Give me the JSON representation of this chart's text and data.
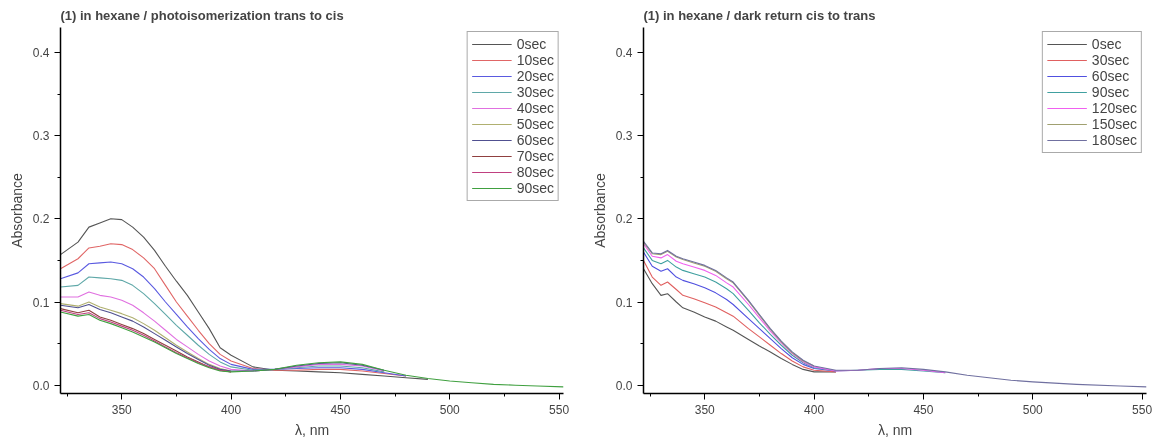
{
  "chart_data": [
    {
      "type": "line",
      "title": "(1) in hexane / photoisomerization trans to cis",
      "xlabel": "λ, nm",
      "ylabel": "Absorbance",
      "x": [
        322,
        330,
        335,
        340,
        345,
        350,
        355,
        360,
        365,
        370,
        375,
        380,
        385,
        390,
        395,
        400,
        410,
        420,
        430,
        440,
        450,
        460,
        470,
        480,
        490,
        500,
        510,
        520,
        530,
        540,
        552
      ],
      "xlim": [
        322,
        552
      ],
      "ylim": [
        -0.01,
        0.43
      ],
      "xticks": [
        {
          "value": 325,
          "label": null
        },
        350,
        {
          "value": 375,
          "label": null
        },
        400,
        {
          "value": 425,
          "label": null
        },
        450,
        {
          "value": 475,
          "label": null
        },
        500,
        {
          "value": 525,
          "label": null
        },
        550
      ],
      "yticks": [
        {
          "value": 0,
          "label": "0.0"
        },
        {
          "value": 0.05,
          "label": null
        },
        0.1,
        {
          "value": 0.15,
          "label": null
        },
        0.2,
        {
          "value": 0.25,
          "label": null
        },
        0.3,
        {
          "value": 0.35,
          "label": null
        },
        0.4
      ],
      "legend": "top right",
      "grid": false,
      "line_style": "solid",
      "marker": "none",
      "series": [
        {
          "name": "0sec",
          "color": "#555555",
          "values": [
            0.157,
            0.172,
            0.19,
            0.195,
            0.2,
            0.199,
            0.19,
            0.178,
            0.162,
            0.143,
            0.125,
            0.108,
            0.088,
            0.068,
            0.045,
            0.036,
            0.022,
            0.018,
            0.017,
            0.016,
            0.015,
            0.013,
            0.011,
            0.009,
            0.007,
            null,
            null,
            null,
            null,
            null,
            null
          ]
        },
        {
          "name": "10sec",
          "color": "#e06666",
          "values": [
            0.14,
            0.152,
            0.165,
            0.167,
            0.17,
            0.169,
            0.163,
            0.153,
            0.14,
            0.12,
            0.1,
            0.083,
            0.066,
            0.05,
            0.037,
            0.029,
            0.02,
            0.018,
            0.018,
            0.019,
            0.019,
            0.017,
            0.014,
            0.011,
            null,
            null,
            null,
            null,
            null,
            null,
            null
          ]
        },
        {
          "name": "20sec",
          "color": "#5a5ae0",
          "values": [
            0.128,
            0.135,
            0.146,
            0.147,
            0.148,
            0.146,
            0.14,
            0.13,
            0.116,
            0.1,
            0.085,
            0.07,
            0.056,
            0.043,
            0.032,
            0.025,
            0.019,
            0.019,
            0.02,
            0.021,
            0.021,
            0.019,
            0.015,
            0.011,
            null,
            null,
            null,
            null,
            null,
            null,
            null
          ]
        },
        {
          "name": "30sec",
          "color": "#5fa8a8",
          "values": [
            0.118,
            0.12,
            0.13,
            0.129,
            0.128,
            0.126,
            0.12,
            0.11,
            0.098,
            0.085,
            0.072,
            0.06,
            0.048,
            0.037,
            0.028,
            0.022,
            0.018,
            0.019,
            0.021,
            0.023,
            0.023,
            0.021,
            0.016,
            null,
            null,
            null,
            null,
            null,
            null,
            null,
            null
          ]
        },
        {
          "name": "40sec",
          "color": "#e070e0",
          "values": [
            0.106,
            0.106,
            0.112,
            0.108,
            0.106,
            0.102,
            0.096,
            0.087,
            0.077,
            0.066,
            0.055,
            0.046,
            0.037,
            0.029,
            0.023,
            0.019,
            0.017,
            0.019,
            0.022,
            0.025,
            0.025,
            0.023,
            0.017,
            null,
            null,
            null,
            null,
            null,
            null,
            null,
            null
          ]
        },
        {
          "name": "50sec",
          "color": "#b0b070",
          "values": [
            0.098,
            0.095,
            0.1,
            0.094,
            0.09,
            0.086,
            0.081,
            0.074,
            0.066,
            0.057,
            0.048,
            0.04,
            0.032,
            0.025,
            0.02,
            0.017,
            null,
            null,
            null,
            null,
            null,
            null,
            null,
            null,
            null,
            null,
            null,
            null,
            null,
            null,
            null
          ]
        },
        {
          "name": "60sec",
          "color": "#505090",
          "values": [
            0.096,
            0.093,
            0.097,
            0.091,
            0.087,
            0.082,
            0.077,
            0.07,
            0.062,
            0.054,
            0.046,
            0.038,
            0.031,
            0.024,
            0.019,
            0.017,
            0.017,
            0.019,
            0.023,
            0.026,
            0.027,
            0.024,
            0.018,
            null,
            null,
            null,
            null,
            null,
            null,
            null,
            null
          ]
        },
        {
          "name": "70sec",
          "color": "#904040",
          "values": [
            0.092,
            0.087,
            0.09,
            0.082,
            0.078,
            0.073,
            0.068,
            0.062,
            0.055,
            0.048,
            0.041,
            0.034,
            0.028,
            0.022,
            0.018,
            0.016,
            null,
            null,
            null,
            null,
            null,
            null,
            null,
            null,
            null,
            null,
            null,
            null,
            null,
            null,
            null
          ]
        },
        {
          "name": "80sec",
          "color": "#c04080",
          "values": [
            0.09,
            0.085,
            0.087,
            0.08,
            0.076,
            0.071,
            0.066,
            0.06,
            0.053,
            0.046,
            0.039,
            0.033,
            0.027,
            0.022,
            0.018,
            0.016,
            null,
            null,
            null,
            null,
            null,
            null,
            null,
            null,
            null,
            null,
            null,
            null,
            null,
            null,
            null
          ]
        },
        {
          "name": "90sec",
          "color": "#40a040",
          "values": [
            0.088,
            0.083,
            0.085,
            0.078,
            0.074,
            0.069,
            0.064,
            0.058,
            0.052,
            0.045,
            0.038,
            0.032,
            0.026,
            0.021,
            0.017,
            0.016,
            0.017,
            0.019,
            0.024,
            0.027,
            0.028,
            0.025,
            0.018,
            0.012,
            0.008,
            0.005,
            0.003,
            0.001,
            0.0,
            -0.001,
            -0.002
          ]
        }
      ]
    },
    {
      "type": "line",
      "title": "(1) in hexane / dark return cis to trans",
      "xlabel": "λ, nm",
      "ylabel": "Absorbance",
      "x": [
        322,
        326,
        330,
        333,
        337,
        340,
        345,
        350,
        355,
        360,
        363,
        370,
        375,
        380,
        385,
        390,
        395,
        400,
        410,
        420,
        430,
        440,
        450,
        460,
        470,
        480,
        490,
        500,
        520,
        540,
        552
      ],
      "xlim": [
        322,
        552
      ],
      "ylim": [
        -0.01,
        0.43
      ],
      "xticks": [
        {
          "value": 325,
          "label": null
        },
        350,
        {
          "value": 375,
          "label": null
        },
        400,
        {
          "value": 425,
          "label": null
        },
        450,
        {
          "value": 475,
          "label": null
        },
        500,
        {
          "value": 525,
          "label": null
        },
        550
      ],
      "yticks": [
        {
          "value": 0,
          "label": "0.0"
        },
        {
          "value": 0.05,
          "label": null
        },
        0.1,
        {
          "value": 0.15,
          "label": null
        },
        0.2,
        {
          "value": 0.25,
          "label": null
        },
        0.3,
        {
          "value": 0.35,
          "label": null
        },
        0.4
      ],
      "legend": "top right",
      "grid": false,
      "line_style": "solid",
      "marker": "none",
      "series": [
        {
          "name": "0sec",
          "color": "#555555",
          "values": [
            0.14,
            0.122,
            0.108,
            0.11,
            0.1,
            0.093,
            0.088,
            0.082,
            0.077,
            0.07,
            0.066,
            0.055,
            0.047,
            0.04,
            0.032,
            0.025,
            0.019,
            0.016,
            0.016,
            null,
            null,
            null,
            null,
            null,
            null,
            null,
            null,
            null,
            null,
            null,
            null
          ]
        },
        {
          "name": "30sec",
          "color": "#e06060",
          "values": [
            0.15,
            0.13,
            0.12,
            0.124,
            0.115,
            0.108,
            0.104,
            0.099,
            0.094,
            0.087,
            0.083,
            0.068,
            0.058,
            0.048,
            0.038,
            0.029,
            0.022,
            0.018,
            0.016,
            null,
            null,
            null,
            null,
            null,
            null,
            null,
            null,
            null,
            null,
            null,
            null
          ]
        },
        {
          "name": "60sec",
          "color": "#5050e0",
          "values": [
            0.16,
            0.143,
            0.137,
            0.14,
            0.13,
            0.126,
            0.122,
            0.117,
            0.111,
            0.103,
            0.097,
            0.08,
            0.068,
            0.056,
            0.044,
            0.033,
            0.025,
            0.02,
            0.017,
            null,
            null,
            null,
            null,
            null,
            null,
            null,
            null,
            null,
            null,
            null,
            null
          ]
        },
        {
          "name": "90sec",
          "color": "#40a0a0",
          "values": [
            0.165,
            0.15,
            0.146,
            0.15,
            0.142,
            0.138,
            0.134,
            0.13,
            0.124,
            0.116,
            0.11,
            0.09,
            0.075,
            0.061,
            0.048,
            0.036,
            0.027,
            0.021,
            0.017,
            0.018,
            0.019,
            0.019,
            0.017,
            0.015,
            null,
            null,
            null,
            null,
            null,
            null,
            null
          ]
        },
        {
          "name": "120sec",
          "color": "#f060f0",
          "values": [
            0.17,
            0.155,
            0.153,
            0.157,
            0.149,
            0.146,
            0.142,
            0.138,
            0.132,
            0.123,
            0.118,
            0.097,
            0.081,
            0.065,
            0.051,
            0.038,
            0.028,
            0.022,
            0.017,
            0.018,
            0.02,
            0.02,
            0.018,
            0.015,
            null,
            null,
            null,
            null,
            null,
            null,
            null
          ]
        },
        {
          "name": "150sec",
          "color": "#a0a070",
          "values": [
            0.172,
            0.158,
            0.157,
            0.161,
            0.154,
            0.151,
            0.147,
            0.143,
            0.137,
            0.128,
            0.123,
            0.101,
            0.084,
            0.067,
            0.052,
            0.039,
            0.029,
            0.023,
            null,
            null,
            null,
            null,
            null,
            null,
            null,
            null,
            null,
            null,
            null,
            null,
            null
          ]
        },
        {
          "name": "180sec",
          "color": "#7070a0",
          "values": [
            0.173,
            0.159,
            0.158,
            0.162,
            0.155,
            0.152,
            0.148,
            0.144,
            0.138,
            0.129,
            0.124,
            0.102,
            0.085,
            0.068,
            0.053,
            0.04,
            0.03,
            0.023,
            0.018,
            0.018,
            0.02,
            0.021,
            0.019,
            0.016,
            0.012,
            0.009,
            0.006,
            0.004,
            0.001,
            -0.001,
            -0.002
          ]
        }
      ]
    }
  ]
}
